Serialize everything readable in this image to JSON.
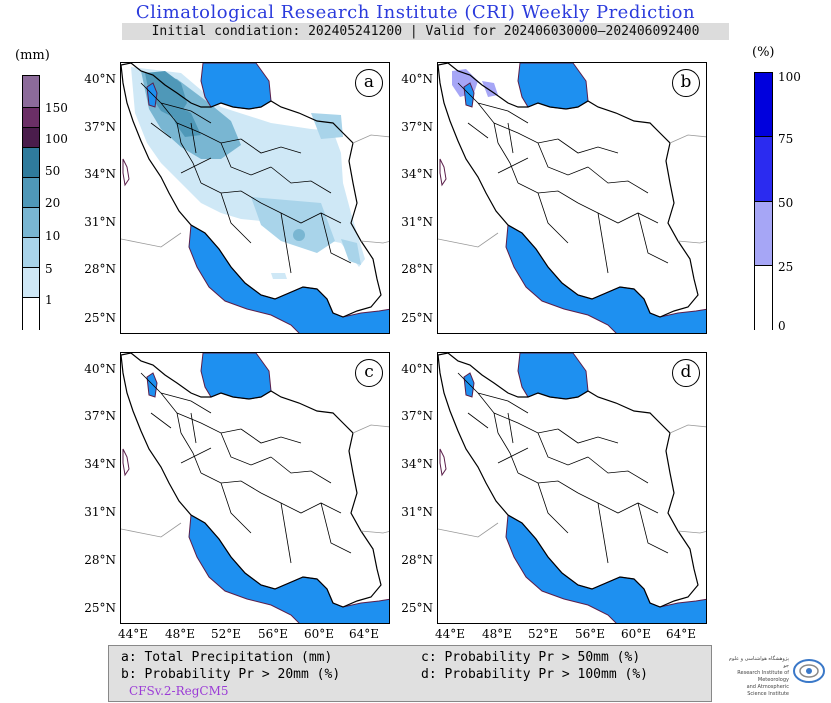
{
  "header": {
    "title": "Climatological Research Institute (CRI) Weekly Prediction",
    "subtitle": "Initial condiation: 202405241200 | Valid for 202406030000–202406092400"
  },
  "left_colorbar": {
    "unit": "(mm)",
    "labels": [
      "150",
      "100",
      "50",
      "20",
      "10",
      "5",
      "1"
    ],
    "colors": [
      "#8c6b9a",
      "#6b2f66",
      "#4a1d4c",
      "#2f7b9c",
      "#4f98b8",
      "#79b6d2",
      "#a9d4ea",
      "#cfe8f6",
      "#ffffff"
    ]
  },
  "right_colorbar": {
    "unit": "(%)",
    "labels": [
      "100",
      "75",
      "50",
      "25",
      "0"
    ],
    "colors": [
      "#0000dd",
      "#2b2bf0",
      "#a6a6f6",
      "#ffffff"
    ]
  },
  "panels": [
    {
      "label": "a"
    },
    {
      "label": "b"
    },
    {
      "label": "c"
    },
    {
      "label": "d"
    }
  ],
  "lat_labels": [
    "40°N",
    "37°N",
    "34°N",
    "31°N",
    "28°N",
    "25°N"
  ],
  "lon_labels": [
    "44°E",
    "48°E",
    "52°E",
    "56°E",
    "60°E",
    "64°E"
  ],
  "legend": {
    "a": "a: Total Precipitation (mm)",
    "b": "b: Probability Pr > 20mm (%)",
    "c": "c: Probability Pr > 50mm (%)",
    "d": "d: Probability Pr > 100mm (%)",
    "model": "CFSv.2-RegCM5"
  },
  "logo": {
    "line1": "پژوهشگاه هواشناسی و علوم جو",
    "line2": "Research Institute of Meteorology",
    "line3": "and Atmospheric Science Institute"
  },
  "colors": {
    "sea": "#1e90f0",
    "title": "#2b3bdc"
  }
}
